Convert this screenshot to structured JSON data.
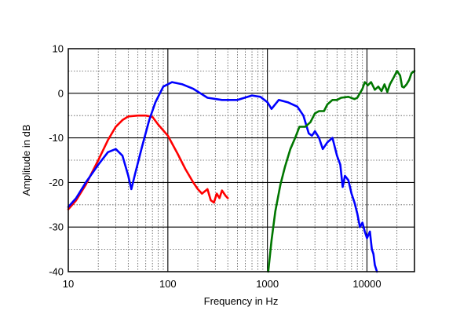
{
  "chart_data": {
    "type": "line",
    "xlabel": "Frequency in Hz",
    "ylabel": "Amplitude in dB",
    "x_scale": "log",
    "xlim": [
      10,
      30000
    ],
    "ylim": [
      -40,
      10
    ],
    "grid": true,
    "x_ticks": [
      {
        "value": 10,
        "label": "10"
      },
      {
        "value": 100,
        "label": "100"
      },
      {
        "value": 1000,
        "label": "1000"
      },
      {
        "value": 10000,
        "label": "10000"
      }
    ],
    "y_ticks": [
      {
        "value": 10,
        "label": "10"
      },
      {
        "value": 0,
        "label": "0"
      },
      {
        "value": -10,
        "label": "-10"
      },
      {
        "value": -20,
        "label": "-20"
      },
      {
        "value": -30,
        "label": "-30"
      },
      {
        "value": -40,
        "label": "-40"
      }
    ],
    "series": [
      {
        "color": "#ff0000",
        "points": [
          [
            10,
            -26
          ],
          [
            12,
            -24
          ],
          [
            15,
            -20.5
          ],
          [
            20,
            -15
          ],
          [
            25,
            -10.5
          ],
          [
            30,
            -7.5
          ],
          [
            35,
            -6
          ],
          [
            40,
            -5.2
          ],
          [
            50,
            -5
          ],
          [
            60,
            -5
          ],
          [
            70,
            -5.3
          ],
          [
            80,
            -7
          ],
          [
            100,
            -9.5
          ],
          [
            125,
            -13.5
          ],
          [
            150,
            -17
          ],
          [
            180,
            -20
          ],
          [
            200,
            -21.5
          ],
          [
            220,
            -22.5
          ],
          [
            250,
            -21.5
          ],
          [
            270,
            -24
          ],
          [
            290,
            -24.5
          ],
          [
            310,
            -22.5
          ],
          [
            330,
            -23.5
          ],
          [
            350,
            -21.8
          ],
          [
            380,
            -23
          ],
          [
            400,
            -23.5
          ]
        ]
      },
      {
        "color": "#0000ff",
        "points": [
          [
            10,
            -25.5
          ],
          [
            12,
            -23.5
          ],
          [
            15,
            -20
          ],
          [
            20,
            -16
          ],
          [
            25,
            -13.2
          ],
          [
            30,
            -12.5
          ],
          [
            35,
            -14
          ],
          [
            40,
            -18.5
          ],
          [
            43,
            -21.5
          ],
          [
            47,
            -18
          ],
          [
            55,
            -12
          ],
          [
            65,
            -6
          ],
          [
            75,
            -2
          ],
          [
            90,
            1.5
          ],
          [
            110,
            2.5
          ],
          [
            140,
            2
          ],
          [
            180,
            1
          ],
          [
            250,
            -1
          ],
          [
            350,
            -1.5
          ],
          [
            500,
            -1.5
          ],
          [
            700,
            -0.5
          ],
          [
            850,
            -0.8
          ],
          [
            1000,
            -2
          ],
          [
            1100,
            -3.5
          ],
          [
            1300,
            -1.5
          ],
          [
            1600,
            -2
          ],
          [
            2000,
            -3
          ],
          [
            2300,
            -5
          ],
          [
            2600,
            -9
          ],
          [
            2800,
            -9.5
          ],
          [
            3000,
            -8.5
          ],
          [
            3300,
            -10
          ],
          [
            3600,
            -12.5
          ],
          [
            4000,
            -11
          ],
          [
            4500,
            -10
          ],
          [
            5000,
            -14
          ],
          [
            5400,
            -16
          ],
          [
            5700,
            -21
          ],
          [
            6000,
            -18.5
          ],
          [
            6500,
            -19.5
          ],
          [
            7000,
            -22.5
          ],
          [
            7500,
            -24.5
          ],
          [
            8000,
            -27
          ],
          [
            8500,
            -30
          ],
          [
            9000,
            -29
          ],
          [
            9500,
            -31
          ],
          [
            10000,
            -32.5
          ],
          [
            10700,
            -31
          ],
          [
            11200,
            -35
          ],
          [
            11600,
            -36
          ],
          [
            12000,
            -38.5
          ],
          [
            12600,
            -40
          ]
        ]
      },
      {
        "color": "#007700",
        "points": [
          [
            1020,
            -40
          ],
          [
            1100,
            -33
          ],
          [
            1200,
            -26.5
          ],
          [
            1350,
            -20.5
          ],
          [
            1500,
            -16.5
          ],
          [
            1700,
            -12.5
          ],
          [
            1900,
            -10
          ],
          [
            2100,
            -7.5
          ],
          [
            2400,
            -7.5
          ],
          [
            2700,
            -6.5
          ],
          [
            3000,
            -4.5
          ],
          [
            3300,
            -4
          ],
          [
            3700,
            -4
          ],
          [
            4000,
            -2.5
          ],
          [
            4500,
            -1.5
          ],
          [
            5000,
            -1.5
          ],
          [
            5500,
            -1
          ],
          [
            6500,
            -0.8
          ],
          [
            7500,
            -1.3
          ],
          [
            8000,
            -1
          ],
          [
            9000,
            1
          ],
          [
            9500,
            2.5
          ],
          [
            10200,
            1.8
          ],
          [
            11000,
            2.5
          ],
          [
            12000,
            0.8
          ],
          [
            13000,
            1.5
          ],
          [
            14000,
            0.5
          ],
          [
            15000,
            2
          ],
          [
            16000,
            0.3
          ],
          [
            17000,
            2
          ],
          [
            18500,
            3.5
          ],
          [
            20000,
            5
          ],
          [
            21500,
            4
          ],
          [
            22500,
            1.5
          ],
          [
            23500,
            1.3
          ],
          [
            25000,
            2
          ],
          [
            26500,
            3
          ],
          [
            28000,
            4.5
          ],
          [
            30000,
            5
          ]
        ]
      }
    ]
  }
}
